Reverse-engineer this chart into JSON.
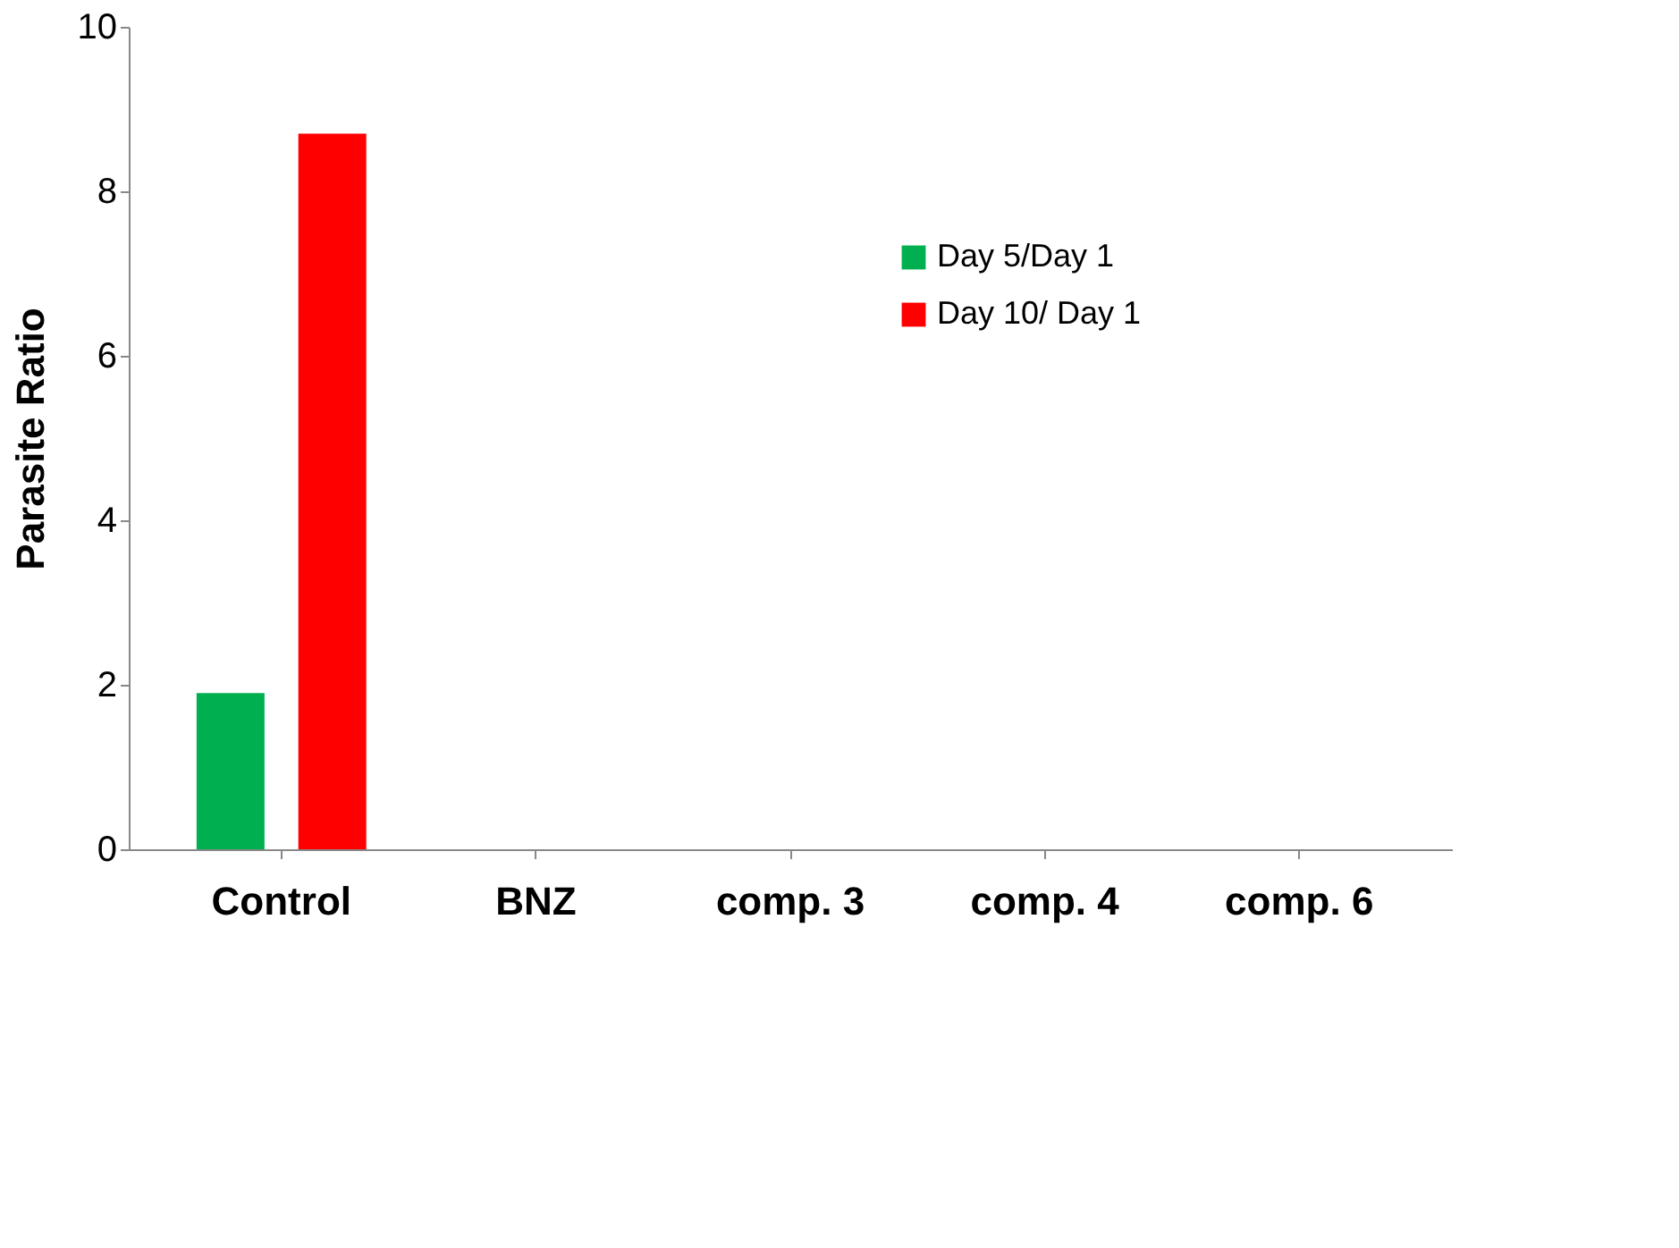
{
  "chart_data": {
    "type": "bar",
    "ylabel": "Parasite  Ratio",
    "categories": [
      "Control",
      "BNZ",
      "comp. 3",
      "comp. 4",
      "comp. 6"
    ],
    "series": [
      {
        "name": "Day 5/Day 1",
        "color": "#00b050",
        "values": [
          1.9,
          0,
          0,
          0,
          0
        ]
      },
      {
        "name": "Day 10/ Day 1",
        "color": "#ff0000",
        "values": [
          8.7,
          0,
          0,
          0,
          0
        ]
      }
    ],
    "ylim": [
      0,
      10
    ],
    "yticks": [
      0,
      2,
      4,
      6,
      8,
      10
    ],
    "grid": false,
    "legend": "top right"
  }
}
